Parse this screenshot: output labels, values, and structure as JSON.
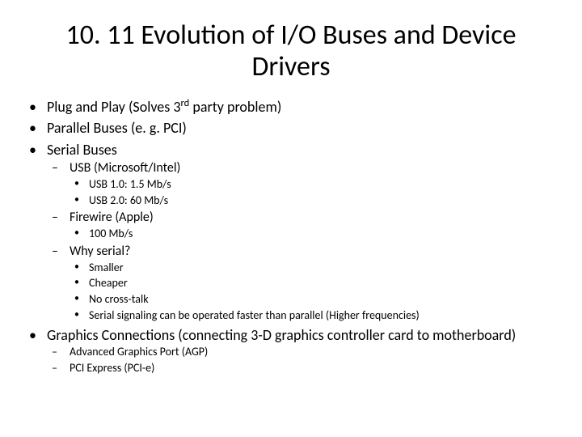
{
  "title": "10. 11 Evolution of I/O Buses and Device Drivers",
  "b1": "Plug and Play (Solves 3",
  "b1_sup": "rd",
  "b1_tail": " party problem)",
  "b2": "Parallel Buses (e. g. PCI)",
  "b3": "Serial Buses",
  "b3_1": "USB (Microsoft/Intel)",
  "b3_1_1": "USB 1.0: 1.5 Mb/s",
  "b3_1_2": "USB 2.0: 60 Mb/s",
  "b3_2": "Firewire  (Apple)",
  "b3_2_1": "100 Mb/s",
  "b3_3": "Why serial?",
  "b3_3_1": "Smaller",
  "b3_3_2": "Cheaper",
  "b3_3_3": "No cross-talk",
  "b3_3_4": "Serial signaling can be operated faster than parallel (Higher frequencies)",
  "b4": "Graphics Connections (connecting 3-D graphics controller card to motherboard)",
  "b4_1": "Advanced Graphics Port (AGP)",
  "b4_2": "PCI Express (PCI-e)"
}
